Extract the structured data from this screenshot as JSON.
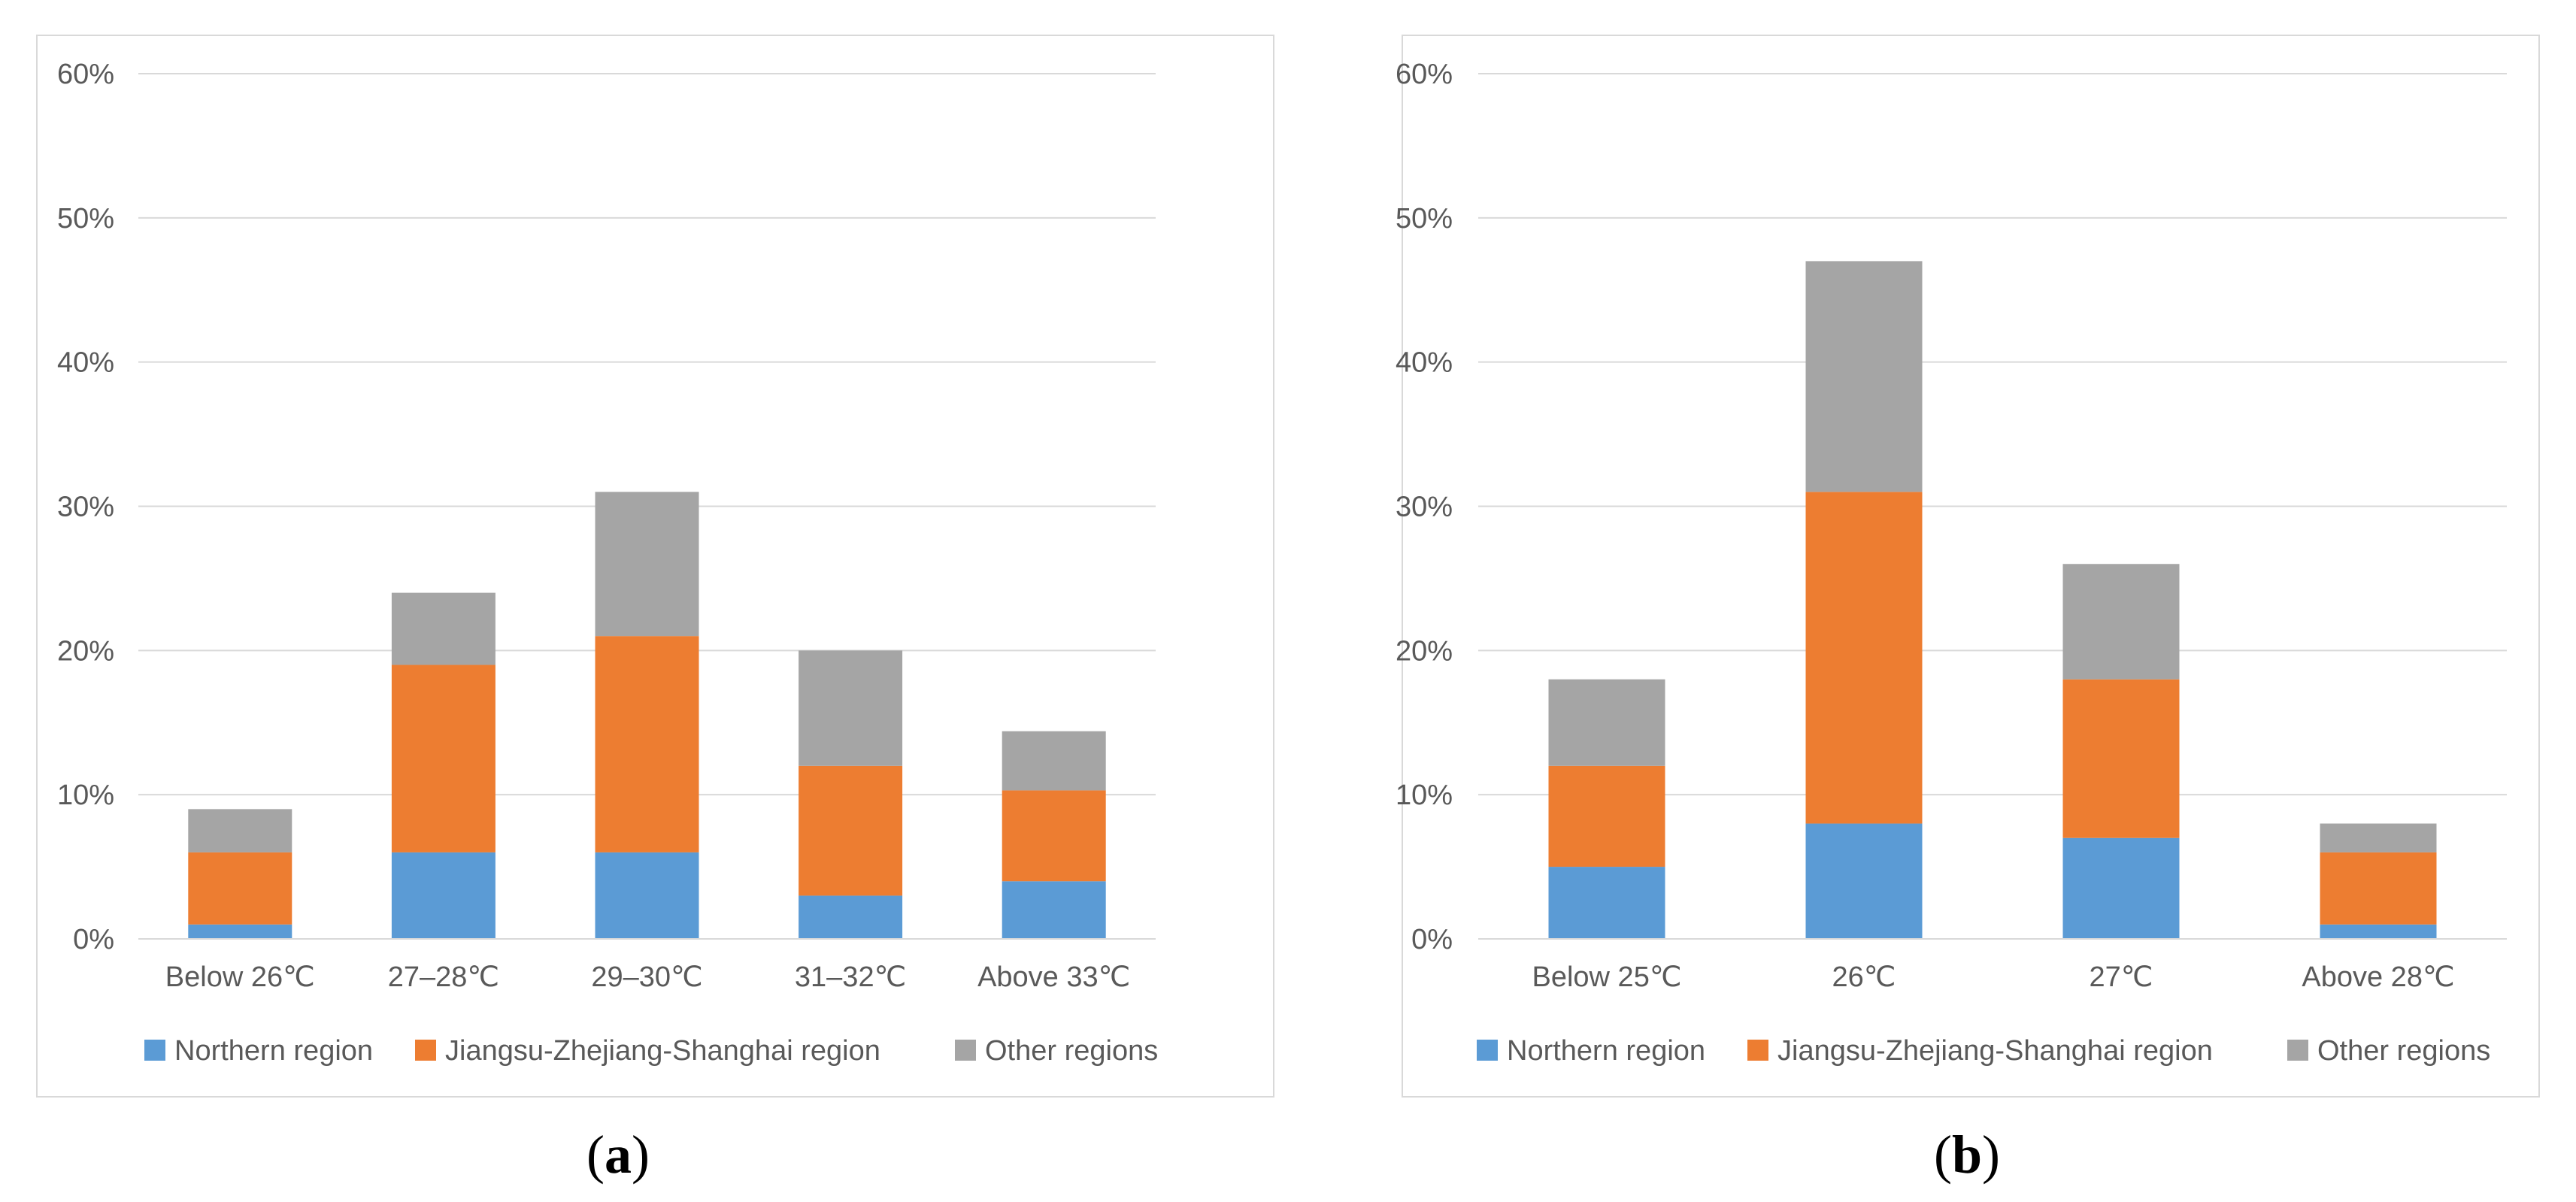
{
  "charts": [
    {
      "id": "a",
      "sublabel": "a",
      "chart_data": {
        "type": "bar",
        "stacked": true,
        "categories": [
          "Below 26℃",
          "27–28℃",
          "29–30℃",
          "31–32℃",
          "Above 33℃"
        ],
        "series": [
          {
            "name": "Northern region",
            "color": "#5b9bd5",
            "values": [
              1,
              6,
              6,
              3,
              4
            ]
          },
          {
            "name": "Jiangsu-Zhejiang-Shanghai region",
            "color": "#ed7d31",
            "values": [
              5,
              13,
              15,
              9,
              6.3
            ]
          },
          {
            "name": "Other regions",
            "color": "#a5a5a5",
            "values": [
              3,
              5,
              10,
              8,
              4.1
            ]
          }
        ],
        "ylim": [
          0,
          60
        ],
        "yticks": [
          "0%",
          "10%",
          "20%",
          "30%",
          "40%",
          "50%",
          "60%"
        ],
        "grid": true,
        "legend": "bottom",
        "title": "",
        "xlabel": "",
        "ylabel": ""
      }
    },
    {
      "id": "b",
      "sublabel": "b",
      "chart_data": {
        "type": "bar",
        "stacked": true,
        "categories": [
          "Below 25℃",
          "26℃",
          "27℃",
          "Above 28℃"
        ],
        "series": [
          {
            "name": "Northern region",
            "color": "#5b9bd5",
            "values": [
              5,
              8,
              7,
              1
            ]
          },
          {
            "name": "Jiangsu-Zhejiang-Shanghai region",
            "color": "#ed7d31",
            "values": [
              7,
              23,
              11,
              5
            ]
          },
          {
            "name": "Other regions",
            "color": "#a5a5a5",
            "values": [
              6,
              16,
              8,
              2
            ]
          }
        ],
        "ylim": [
          0,
          60
        ],
        "yticks": [
          "0%",
          "10%",
          "20%",
          "30%",
          "40%",
          "50%",
          "60%"
        ],
        "grid": true,
        "legend": "bottom",
        "title": "",
        "xlabel": "",
        "ylabel": ""
      }
    }
  ]
}
